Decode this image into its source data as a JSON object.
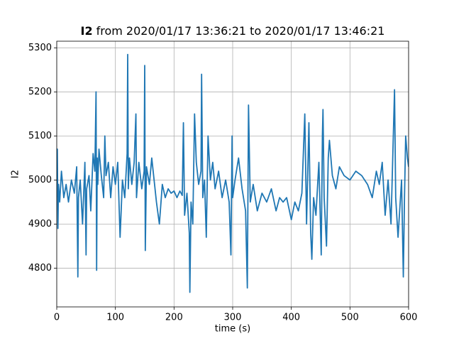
{
  "chart_data": {
    "type": "line",
    "title_bold": "I2",
    "title_rest": "from 2020/01/17 13:36:21 to 2020/01/17 13:46:21",
    "xlabel": "time (s)",
    "ylabel": "I2",
    "color": "#1f77b4",
    "grid": true,
    "xlim": [
      0,
      600
    ],
    "xticks": [
      0,
      100,
      200,
      300,
      400,
      500,
      600
    ],
    "ylim": [
      4712,
      5315
    ],
    "yticks": [
      4800,
      4900,
      5000,
      5100,
      5200,
      5300
    ],
    "x": [
      0,
      1,
      2,
      3,
      5,
      8,
      12,
      16,
      20,
      25,
      30,
      34,
      36,
      37,
      40,
      44,
      48,
      50,
      51,
      55,
      58,
      62,
      65,
      67,
      68,
      69,
      70,
      72,
      76,
      80,
      82,
      84,
      88,
      92,
      96,
      100,
      104,
      108,
      112,
      116,
      120,
      121,
      122,
      124,
      128,
      132,
      135,
      136,
      140,
      145,
      149,
      150,
      151,
      153,
      158,
      162,
      166,
      170,
      175,
      180,
      185,
      190,
      195,
      200,
      205,
      210,
      214,
      216,
      218,
      222,
      226,
      227,
      229,
      232,
      235,
      238,
      242,
      246,
      247,
      249,
      252,
      255,
      258,
      262,
      266,
      270,
      276,
      282,
      288,
      294,
      297,
      299,
      300,
      304,
      310,
      316,
      322,
      325,
      327,
      330,
      335,
      342,
      350,
      358,
      366,
      374,
      380,
      386,
      392,
      400,
      406,
      412,
      418,
      423,
      426,
      430,
      433,
      435,
      438,
      442,
      447,
      451,
      453,
      454,
      456,
      460,
      463,
      465,
      470,
      476,
      482,
      490,
      500,
      510,
      520,
      530,
      538,
      545,
      550,
      555,
      560,
      565,
      570,
      576,
      578,
      582,
      588,
      591,
      593,
      595,
      598,
      600
    ],
    "values": [
      4960,
      5070,
      4890,
      4990,
      4950,
      5020,
      4960,
      4990,
      4950,
      5000,
      4970,
      5030,
      4780,
      4960,
      5000,
      4900,
      5040,
      4830,
      4980,
      5010,
      4930,
      5060,
      5020,
      5200,
      4795,
      5050,
      4990,
      5070,
      5010,
      4960,
      5100,
      5010,
      5040,
      4960,
      5030,
      4990,
      5040,
      4870,
      5000,
      4960,
      5060,
      5285,
      4980,
      5050,
      4990,
      5040,
      5150,
      4960,
      5040,
      4980,
      5020,
      5260,
      4840,
      5030,
      4990,
      5050,
      5000,
      4950,
      4900,
      4990,
      4960,
      4980,
      4970,
      4975,
      4960,
      4975,
      4965,
      5130,
      4920,
      4970,
      4880,
      4745,
      4950,
      4900,
      5150,
      5040,
      4990,
      5020,
      5240,
      4960,
      5000,
      4870,
      5100,
      5000,
      5040,
      4980,
      5020,
      4960,
      5000,
      4950,
      4830,
      5100,
      4960,
      5000,
      5050,
      4980,
      4930,
      4755,
      5170,
      4950,
      4990,
      4930,
      4970,
      4950,
      4980,
      4930,
      4960,
      4950,
      4960,
      4910,
      4950,
      4930,
      4970,
      5150,
      4900,
      5130,
      4880,
      4820,
      4960,
      4920,
      5040,
      4830,
      5100,
      5160,
      4960,
      4850,
      5050,
      5090,
      5010,
      4980,
      5030,
      5010,
      5000,
      5020,
      5010,
      4990,
      4960,
      5020,
      4990,
      5040,
      4920,
      5000,
      4900,
      5205,
      4960,
      4870,
      5000,
      4780,
      4960,
      5100,
      5050,
      5030
    ]
  }
}
